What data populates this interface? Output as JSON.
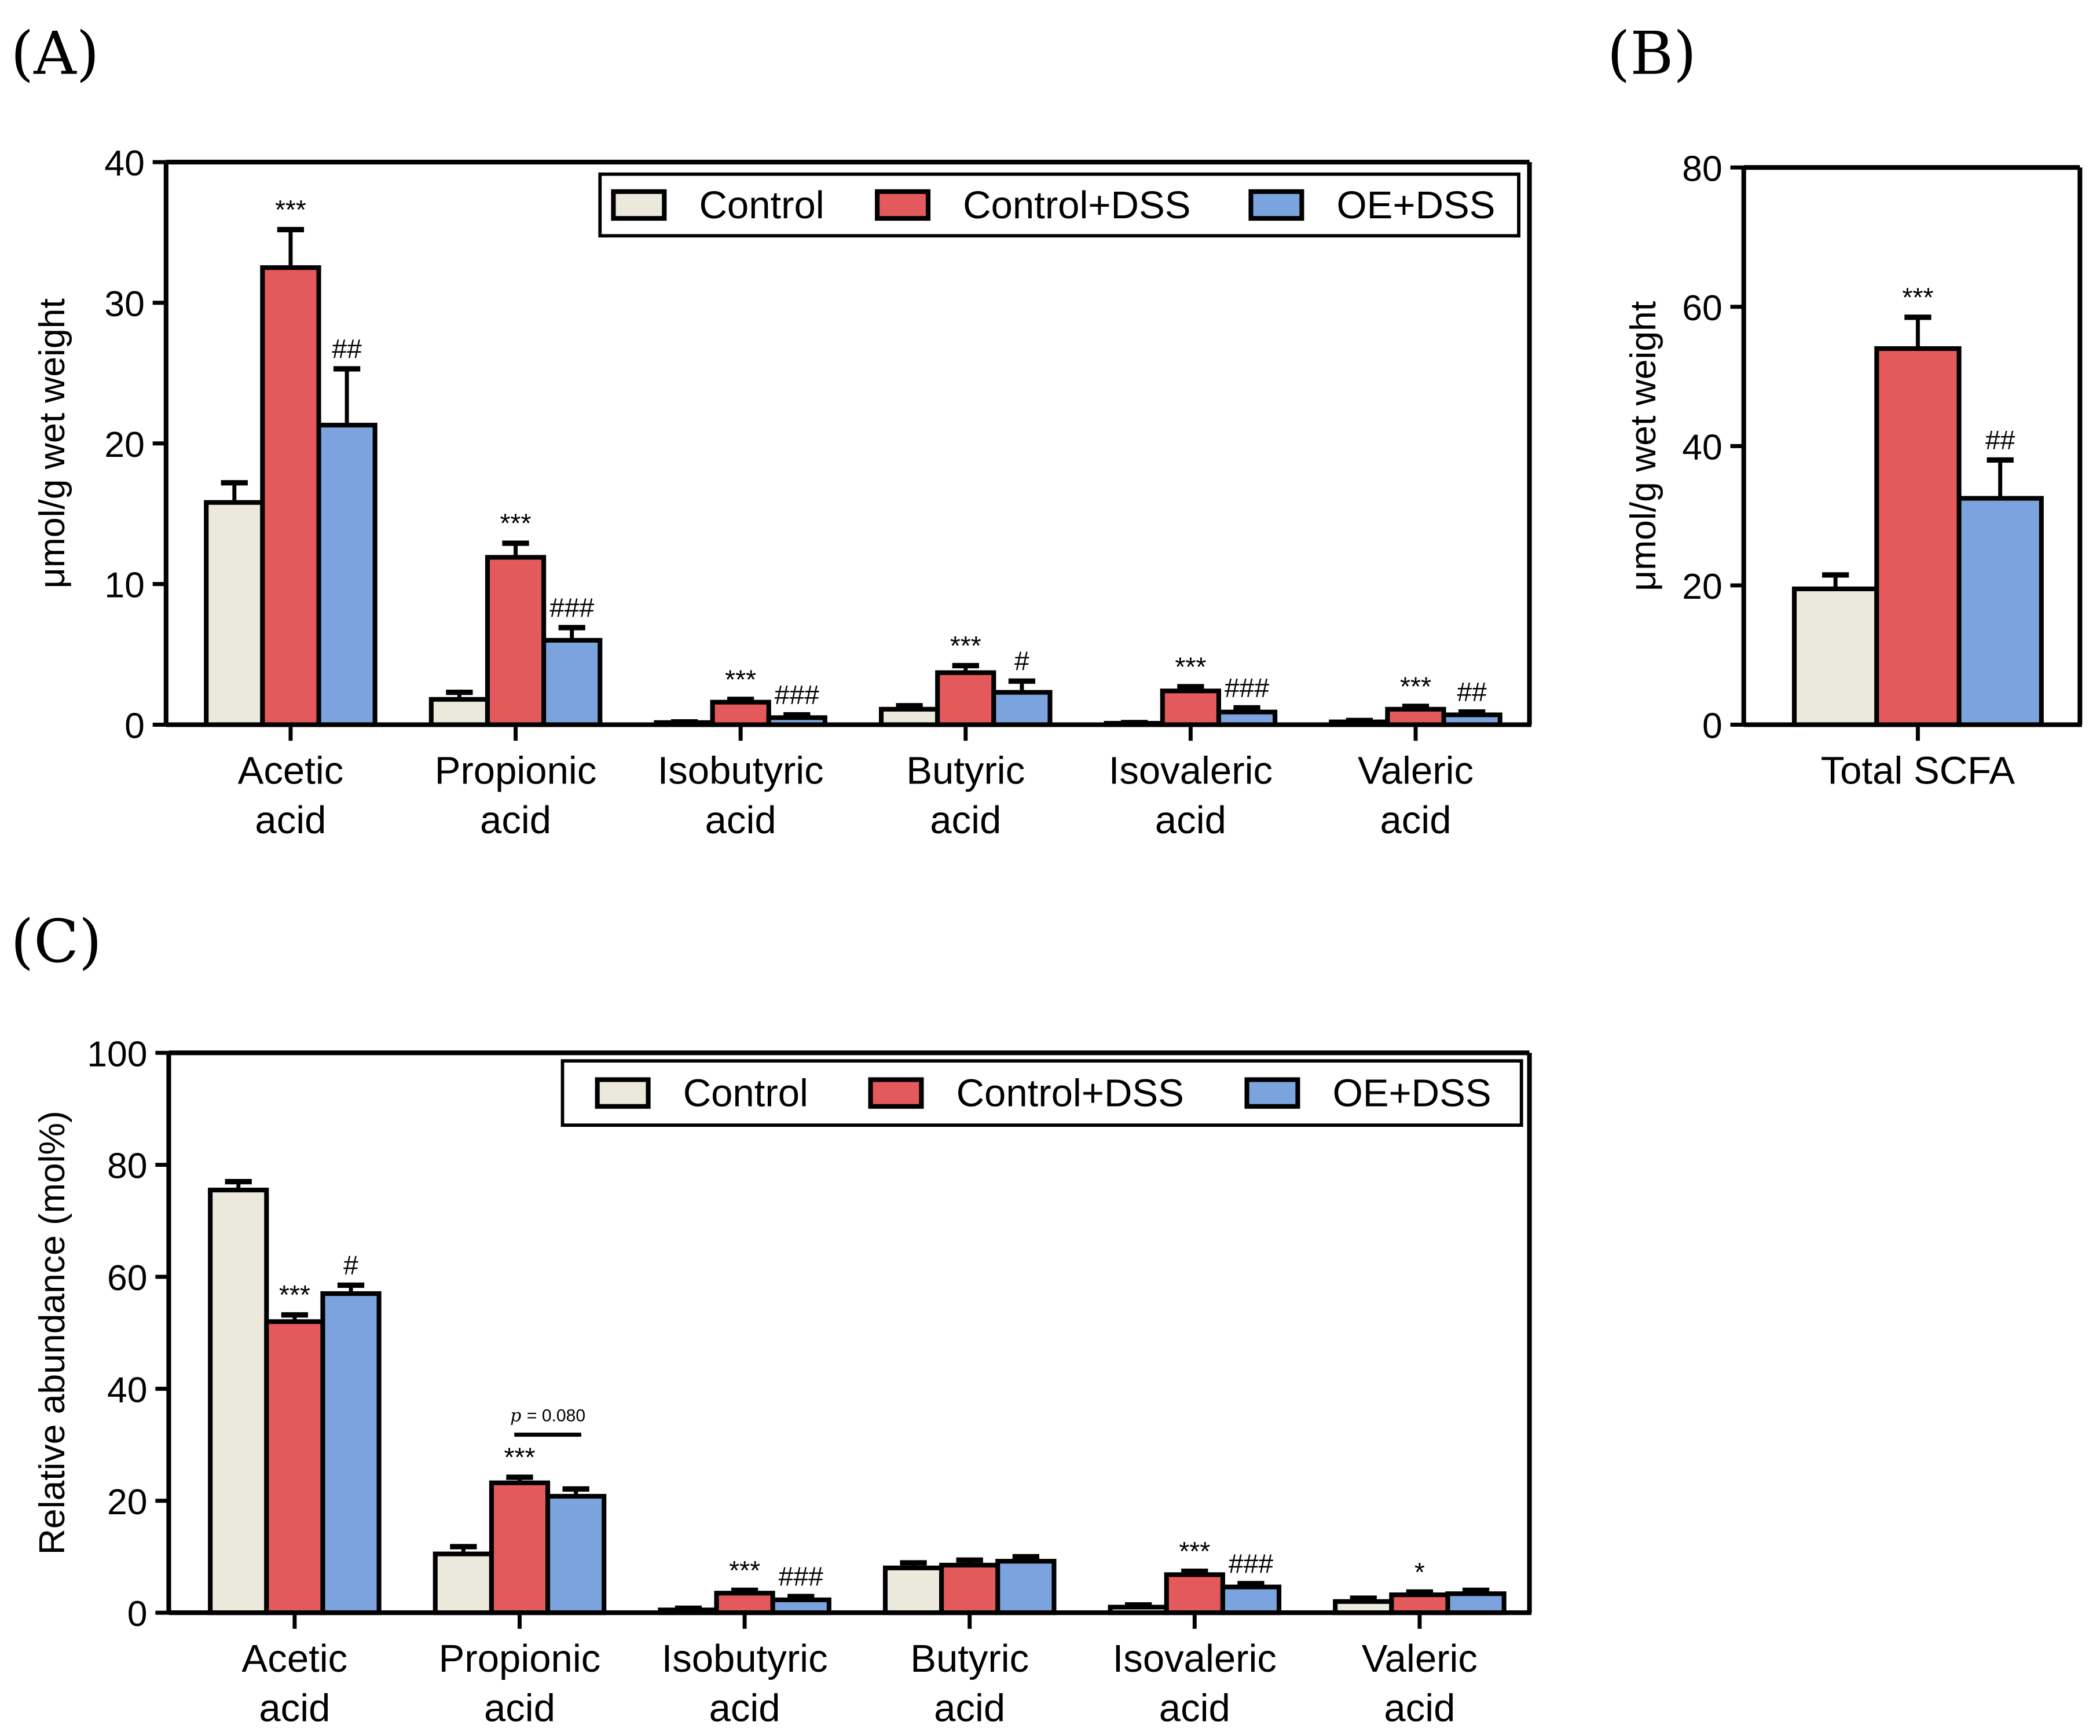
{
  "colors": {
    "control": "#ebe8dc",
    "control_dss": "#e45a5c",
    "oe_dss": "#7ba4de"
  },
  "legend": [
    "Control",
    "Control+DSS",
    "OE+DSS"
  ],
  "chart_data": [
    {
      "id": "A",
      "panel_label": "(A)",
      "type": "bar",
      "ylabel": "μmol/g wet weight",
      "ylim": [
        0,
        40
      ],
      "yticks": [
        0,
        10,
        20,
        30,
        40
      ],
      "categories": [
        "Acetic\nacid",
        "Propionic\nacid",
        "Isobutyric\nacid",
        "Butyric\nacid",
        "Isovaleric\nacid",
        "Valeric\nacid"
      ],
      "legend_placement": "top-right",
      "series": [
        {
          "name": "Control",
          "values": [
            15.8,
            1.8,
            0.15,
            1.1,
            0.1,
            0.2
          ],
          "errors": [
            1.4,
            0.5,
            0.05,
            0.25,
            0.05,
            0.1
          ],
          "annotations": [
            "",
            "",
            "",
            "",
            "",
            ""
          ]
        },
        {
          "name": "Control+DSS",
          "values": [
            32.5,
            11.9,
            1.6,
            3.7,
            2.4,
            1.1
          ],
          "errors": [
            2.7,
            1.0,
            0.2,
            0.5,
            0.3,
            0.2
          ],
          "annotations": [
            "***",
            "***",
            "***",
            "***",
            "***",
            "***"
          ]
        },
        {
          "name": "OE+DSS",
          "values": [
            21.3,
            6.0,
            0.5,
            2.3,
            0.9,
            0.7
          ],
          "errors": [
            4.0,
            0.9,
            0.2,
            0.8,
            0.3,
            0.2
          ],
          "annotations": [
            "##",
            "###",
            "###",
            "#",
            "###",
            "##"
          ]
        }
      ]
    },
    {
      "id": "B",
      "panel_label": "(B)",
      "type": "bar",
      "ylabel": "μmol/g wet weight",
      "ylim": [
        0,
        80
      ],
      "yticks": [
        0,
        20,
        40,
        60,
        80
      ],
      "categories": [
        "Total SCFA"
      ],
      "series": [
        {
          "name": "Control",
          "values": [
            19.5
          ],
          "errors": [
            2.0
          ],
          "annotations": [
            ""
          ]
        },
        {
          "name": "Control+DSS",
          "values": [
            54.0
          ],
          "errors": [
            4.5
          ],
          "annotations": [
            "***"
          ]
        },
        {
          "name": "OE+DSS",
          "values": [
            32.5
          ],
          "errors": [
            5.5
          ],
          "annotations": [
            "##"
          ]
        }
      ]
    },
    {
      "id": "C",
      "panel_label": "(C)",
      "type": "bar",
      "ylabel": "Relative abundance (mol%)",
      "ylim": [
        0,
        100
      ],
      "yticks": [
        0,
        20,
        40,
        60,
        80,
        100
      ],
      "categories": [
        "Acetic\nacid",
        "Propionic\nacid",
        "Isobutyric\nacid",
        "Butyric\nacid",
        "Isovaleric\nacid",
        "Valeric\nacid"
      ],
      "legend_placement": "top-right",
      "pvalue_note": {
        "text": "= 0.080",
        "italic_prefix": "p",
        "category": 1
      },
      "series": [
        {
          "name": "Control",
          "values": [
            75.5,
            10.5,
            0.5,
            8.0,
            1.0,
            2.0
          ],
          "errors": [
            1.5,
            1.3,
            0.3,
            0.9,
            0.4,
            0.6
          ],
          "annotations": [
            "",
            "",
            "",
            "",
            "",
            ""
          ]
        },
        {
          "name": "Control+DSS",
          "values": [
            52.0,
            23.2,
            3.5,
            8.5,
            6.8,
            3.2
          ],
          "errors": [
            1.2,
            1.0,
            0.5,
            0.9,
            0.6,
            0.5
          ],
          "annotations": [
            "***",
            "***",
            "***",
            "",
            "***",
            "*"
          ]
        },
        {
          "name": "OE+DSS",
          "values": [
            57.0,
            20.8,
            2.3,
            9.2,
            4.6,
            3.4
          ],
          "errors": [
            1.5,
            1.3,
            0.6,
            0.8,
            0.6,
            0.6
          ],
          "annotations": [
            "#",
            "",
            "###",
            "",
            "###",
            ""
          ]
        }
      ]
    }
  ]
}
